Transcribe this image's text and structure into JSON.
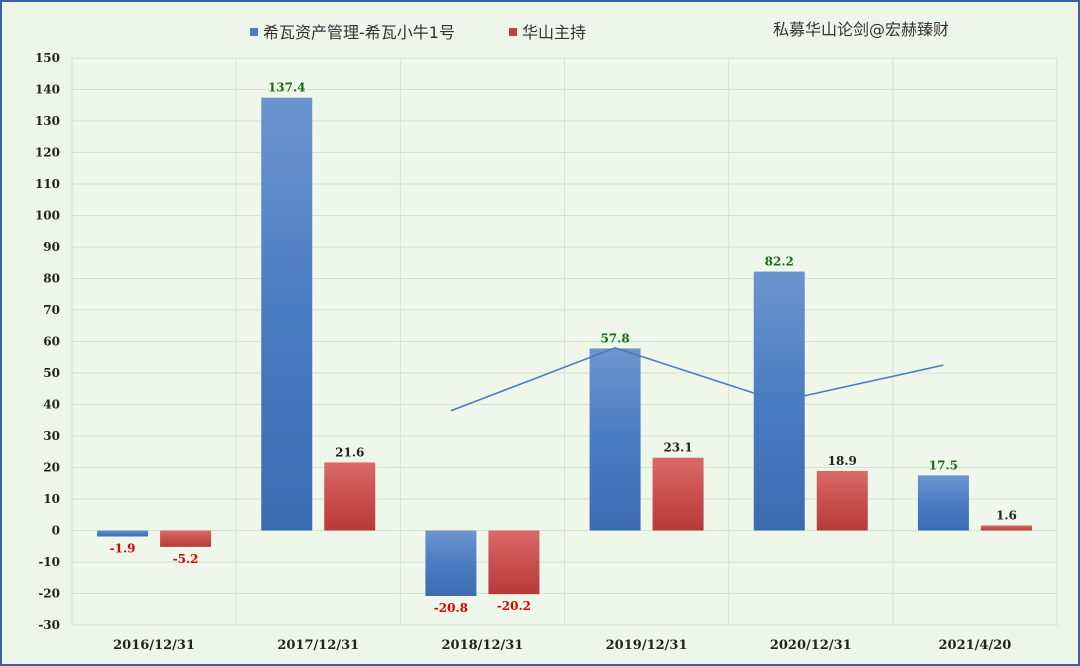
{
  "watermark": "私募华山论剑@宏赫臻财",
  "chart_data": {
    "type": "bar",
    "categories": [
      "2016/12/31",
      "2017/12/31",
      "2018/12/31",
      "2019/12/31",
      "2020/12/31",
      "2021/4/20"
    ],
    "ylim": [
      -30,
      150
    ],
    "ystep": 10,
    "grid": true,
    "legend_position": "top",
    "series": [
      {
        "name": "希瓦资产管理-希瓦小牛1号",
        "values": [
          -1.9,
          137.4,
          -20.8,
          57.8,
          82.2,
          17.5
        ],
        "labels": [
          "-1.9",
          "137.4",
          "-20.8",
          "57.8",
          "82.2",
          "17.5"
        ],
        "color": "#4a7cc1"
      },
      {
        "name": "华山主持",
        "values": [
          -5.2,
          21.6,
          -20.2,
          23.1,
          18.9,
          1.6
        ],
        "labels": [
          "-5.2",
          "21.6",
          "-20.2",
          "23.1",
          "18.9",
          "1.6"
        ],
        "color": "#c4403f"
      }
    ],
    "line": {
      "color": "#4a7cc1",
      "x": [
        "2018/12/31",
        "2019/12/31",
        "2020/12/31",
        "2021/4/20"
      ],
      "y": [
        38,
        58,
        41,
        52.5
      ]
    },
    "positive_label_colors": [
      "#1a6b1a",
      "#222222"
    ],
    "negative_label_color": "#e00000"
  }
}
